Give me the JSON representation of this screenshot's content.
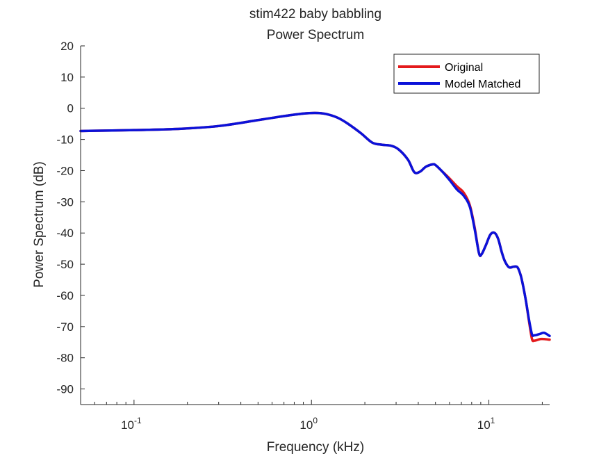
{
  "chart_data": {
    "type": "line",
    "title": "stim422 baby babbling",
    "subtitle": "Power Spectrum",
    "xlabel": "Frequency (kHz)",
    "ylabel": "Power Spectrum (dB)",
    "xscale": "log",
    "xlim": [
      0.05,
      22
    ],
    "ylim": [
      -95,
      20
    ],
    "yticks": [
      20,
      10,
      0,
      -10,
      -20,
      -30,
      -40,
      -50,
      -60,
      -70,
      -80,
      -90
    ],
    "ytick_labels": [
      "20",
      "10",
      "0",
      "-10",
      "-20",
      "-30",
      "-40",
      "-50",
      "-60",
      "-70",
      "-80",
      "-90"
    ],
    "xticks": [
      0.1,
      1,
      10
    ],
    "xtick_labels": [
      {
        "base": "10",
        "exp": "-1"
      },
      {
        "base": "10",
        "exp": "0"
      },
      {
        "base": "10",
        "exp": "1"
      }
    ],
    "grid": false,
    "legend_position": "top-right",
    "series": [
      {
        "name": "Original",
        "color": "#e41a1c",
        "x": [
          0.05,
          0.1,
          0.18,
          0.3,
          0.5,
          0.7,
          0.9,
          1.05,
          1.2,
          1.4,
          1.6,
          1.9,
          2.2,
          2.5,
          2.8,
          3.1,
          3.5,
          3.8,
          4.1,
          4.4,
          4.8,
          5.0,
          5.4,
          6.0,
          6.6,
          7.2,
          7.8,
          8.3,
          8.8,
          9.1,
          9.6,
          10.2,
          10.8,
          11.3,
          11.8,
          12.3,
          13.0,
          13.8,
          14.5,
          15.1,
          15.6,
          16.2,
          16.8,
          17.5,
          18.0,
          18.5,
          19.5,
          20.5,
          22.0
        ],
        "y": [
          -7.3,
          -7.0,
          -6.6,
          -5.7,
          -3.8,
          -2.5,
          -1.7,
          -1.5,
          -1.8,
          -3.0,
          -4.9,
          -8.0,
          -11.0,
          -11.7,
          -12.0,
          -13.2,
          -16.5,
          -20.5,
          -20.3,
          -18.8,
          -18.0,
          -18.2,
          -20.0,
          -22.5,
          -25.0,
          -27.0,
          -31.0,
          -38.0,
          -46.5,
          -46.8,
          -44.0,
          -40.5,
          -40.0,
          -42.0,
          -46.0,
          -49.0,
          -51.0,
          -50.8,
          -51.0,
          -53.5,
          -57.0,
          -62.0,
          -68.0,
          -74.0,
          -74.5,
          -74.4,
          -74.0,
          -74.0,
          -74.2
        ]
      },
      {
        "name": "Model Matched",
        "color": "#0b12d9",
        "x": [
          0.05,
          0.1,
          0.18,
          0.3,
          0.5,
          0.7,
          0.9,
          1.05,
          1.2,
          1.4,
          1.6,
          1.9,
          2.2,
          2.5,
          2.8,
          3.1,
          3.5,
          3.8,
          4.1,
          4.4,
          4.8,
          5.0,
          5.4,
          6.0,
          6.6,
          7.2,
          7.8,
          8.3,
          8.8,
          9.1,
          9.6,
          10.2,
          10.8,
          11.3,
          11.8,
          12.3,
          13.0,
          13.8,
          14.5,
          15.1,
          15.6,
          16.2,
          16.8,
          17.5,
          18.0,
          18.5,
          19.5,
          20.5,
          22.0
        ],
        "y": [
          -7.3,
          -7.0,
          -6.6,
          -5.7,
          -3.8,
          -2.5,
          -1.7,
          -1.5,
          -1.8,
          -3.0,
          -4.9,
          -8.0,
          -11.0,
          -11.7,
          -12.0,
          -13.2,
          -16.5,
          -20.5,
          -20.3,
          -18.8,
          -18.0,
          -18.2,
          -20.0,
          -23.0,
          -26.0,
          -28.0,
          -31.5,
          -38.5,
          -46.5,
          -46.8,
          -44.0,
          -40.5,
          -40.0,
          -42.0,
          -46.0,
          -49.0,
          -51.0,
          -50.8,
          -51.0,
          -53.5,
          -57.0,
          -62.0,
          -67.5,
          -72.5,
          -72.8,
          -72.7,
          -72.3,
          -72.0,
          -73.0
        ]
      }
    ]
  }
}
